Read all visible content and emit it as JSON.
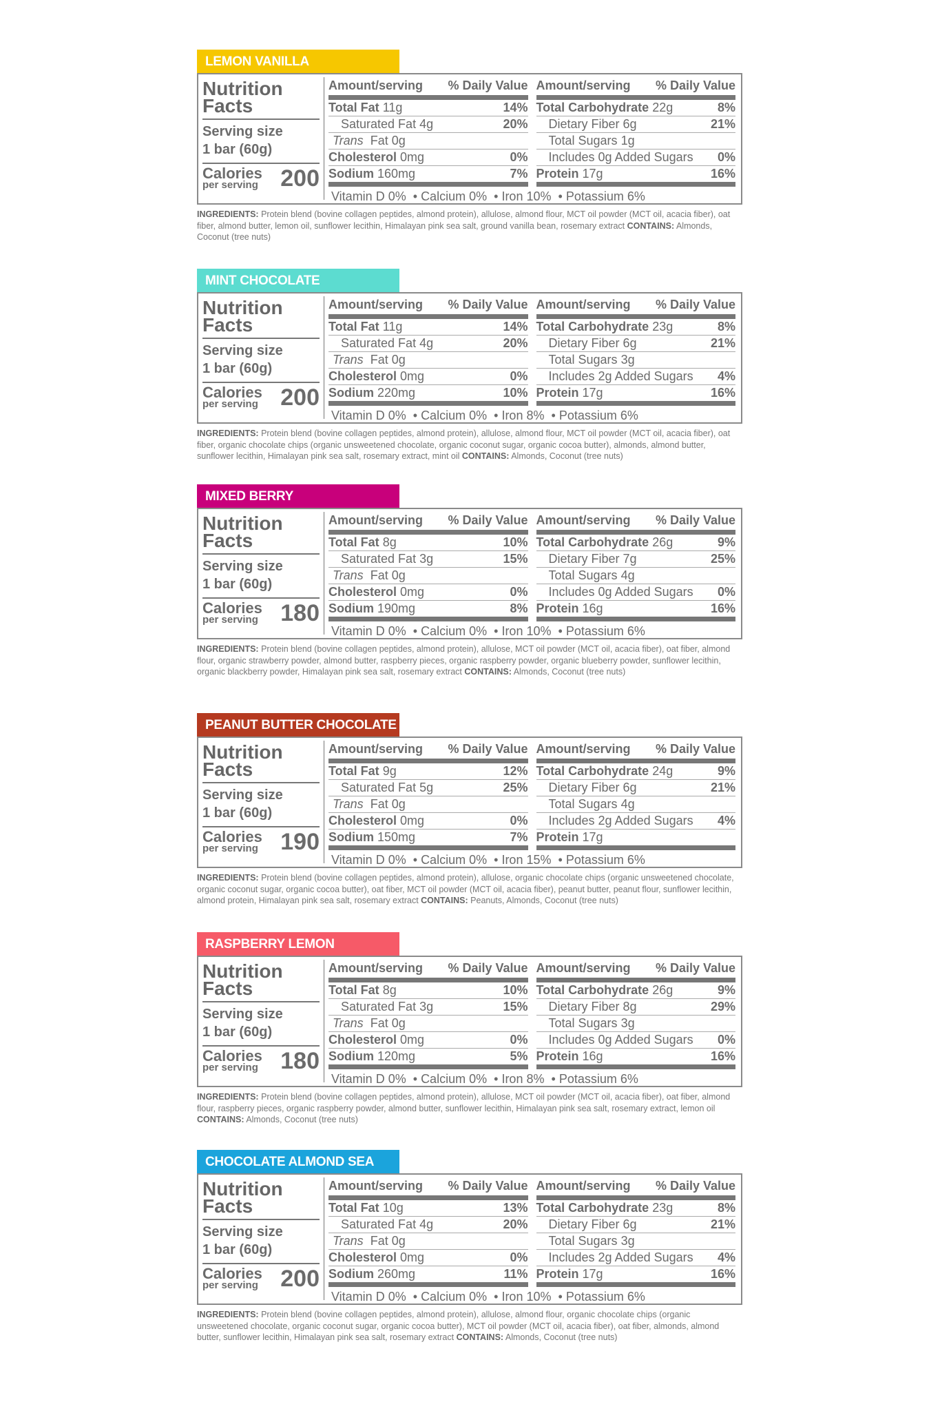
{
  "labels": {
    "nutrition": "Nutrition",
    "facts": "Facts",
    "serving_size": "Serving size",
    "calories": "Calories",
    "per_serving": "per serving",
    "amount_serving": "Amount/serving",
    "daily_value": "% Daily Value",
    "total_fat": "Total Fat",
    "saturated_fat": "Saturated Fat",
    "trans": "Trans",
    "fat": "Fat",
    "cholesterol": "Cholesterol",
    "sodium": "Sodium",
    "total_carbohydrate": "Total Carbohydrate",
    "dietary_fiber": "Dietary Fiber",
    "total_sugars": "Total Sugars",
    "protein": "Protein",
    "ingredients": "INGREDIENTS:",
    "contains": "CONTAINS:",
    "bullet": "•"
  },
  "products": [
    {
      "name": "LEMON VANILLA",
      "color": "#f6c700",
      "serving": "1 bar (60g)",
      "calories": "200",
      "total_fat": "11g",
      "total_fat_dv": "14%",
      "sat_fat": "4g",
      "sat_fat_dv": "20%",
      "trans_fat": "0g",
      "cholesterol": "0mg",
      "cholesterol_dv": "0%",
      "sodium": "160mg",
      "sodium_dv": "7%",
      "carbs": "22g",
      "carbs_dv": "8%",
      "fiber": "6g",
      "fiber_dv": "21%",
      "sugars": "1g",
      "added_sugars": "Includes 0g Added Sugars",
      "added_sugars_dv": "0%",
      "protein": "17g",
      "protein_dv": "16%",
      "vitamins": [
        "Vitamin D 0%",
        "Calcium 0%",
        "Iron 10%",
        "Potassium 6%"
      ],
      "ingredients": "Protein blend (bovine collagen peptides, almond protein), allulose, almond flour, MCT oil powder (MCT oil, acacia fiber), oat fiber, almond butter, lemon oil, sunflower lecithin, Himalayan pink sea salt, ground vanilla bean, rosemary extract",
      "contains": "Almonds, Coconut (tree nuts)"
    },
    {
      "name": "MINT CHOCOLATE",
      "color": "#5cdcd0",
      "serving": "1 bar (60g)",
      "calories": "200",
      "total_fat": "11g",
      "total_fat_dv": "14%",
      "sat_fat": "4g",
      "sat_fat_dv": "20%",
      "trans_fat": "0g",
      "cholesterol": "0mg",
      "cholesterol_dv": "0%",
      "sodium": "220mg",
      "sodium_dv": "10%",
      "carbs": "23g",
      "carbs_dv": "8%",
      "fiber": "6g",
      "fiber_dv": "21%",
      "sugars": "3g",
      "added_sugars": "Includes 2g Added Sugars",
      "added_sugars_dv": "4%",
      "protein": "17g",
      "protein_dv": "16%",
      "vitamins": [
        "Vitamin D 0%",
        "Calcium 0%",
        "Iron 8%",
        "Potassium 6%"
      ],
      "ingredients": "Protein blend (bovine collagen peptides, almond protein), allulose, almond flour, MCT oil powder (MCT oil, acacia fiber), oat fiber, organic chocolate chips (organic unsweetened chocolate, organic coconut sugar, organic cocoa butter), almonds, almond butter, sunflower lecithin, Himalayan pink sea salt, rosemary extract, mint oil",
      "contains": "Almonds, Coconut (tree nuts)"
    },
    {
      "name": "MIXED BERRY",
      "color": "#c8007b",
      "serving": "1 bar (60g)",
      "calories": "180",
      "total_fat": "8g",
      "total_fat_dv": "10%",
      "sat_fat": "3g",
      "sat_fat_dv": "15%",
      "trans_fat": "0g",
      "cholesterol": "0mg",
      "cholesterol_dv": "0%",
      "sodium": "190mg",
      "sodium_dv": "8%",
      "carbs": "26g",
      "carbs_dv": "9%",
      "fiber": "7g",
      "fiber_dv": "25%",
      "sugars": "4g",
      "added_sugars": "Includes 0g Added Sugars",
      "added_sugars_dv": "0%",
      "protein": "16g",
      "protein_dv": "16%",
      "vitamins": [
        "Vitamin D 0%",
        "Calcium 0%",
        "Iron 10%",
        "Potassium 6%"
      ],
      "ingredients": "Protein blend (bovine collagen peptides, almond protein), allulose, MCT oil powder (MCT oil, acacia fiber), oat fiber, almond flour, organic strawberry powder, almond butter, raspberry pieces, organic raspberry powder, organic blueberry powder, sunflower lecithin, organic blackberry powder, Himalayan pink sea salt, rosemary extract",
      "contains": "Almonds, Coconut (tree nuts)"
    },
    {
      "name": "PEANUT BUTTER CHOCOLATE",
      "color": "#b53a20",
      "serving": "1 bar (60g)",
      "calories": "190",
      "total_fat": "9g",
      "total_fat_dv": "12%",
      "sat_fat": "5g",
      "sat_fat_dv": "25%",
      "trans_fat": "0g",
      "cholesterol": "0mg",
      "cholesterol_dv": "0%",
      "sodium": "150mg",
      "sodium_dv": "7%",
      "carbs": "24g",
      "carbs_dv": "9%",
      "fiber": "6g",
      "fiber_dv": "21%",
      "sugars": "4g",
      "added_sugars": "Includes 2g Added Sugars",
      "added_sugars_dv": "4%",
      "protein": "17g",
      "protein_dv": "",
      "vitamins": [
        "Vitamin D 0%",
        "Calcium 0%",
        "Iron 15%",
        "Potassium 6%"
      ],
      "ingredients": "Protein blend (bovine collagen peptides, almond protein), allulose, organic chocolate chips (organic unsweetened chocolate, organic coconut sugar, organic cocoa butter), oat fiber, MCT oil powder (MCT oil, acacia fiber), peanut butter, peanut flour, sunflower lecithin, almond protein, Himalayan pink sea salt, rosemary extract",
      "contains": "Peanuts, Almonds, Coconut (tree nuts)"
    },
    {
      "name": "RASPBERRY LEMON",
      "color": "#f65a68",
      "serving": "1 bar (60g)",
      "calories": "180",
      "total_fat": "8g",
      "total_fat_dv": "10%",
      "sat_fat": "3g",
      "sat_fat_dv": "15%",
      "trans_fat": "0g",
      "cholesterol": "0mg",
      "cholesterol_dv": "0%",
      "sodium": "120mg",
      "sodium_dv": "5%",
      "carbs": "26g",
      "carbs_dv": "9%",
      "fiber": "8g",
      "fiber_dv": "29%",
      "sugars": "3g",
      "added_sugars": "Includes 0g Added Sugars",
      "added_sugars_dv": "0%",
      "protein": "16g",
      "protein_dv": "16%",
      "vitamins": [
        "Vitamin D 0%",
        "Calcium 0%",
        "Iron 8%",
        "Potassium 6%"
      ],
      "ingredients": "Protein blend (bovine collagen peptides, almond protein), allulose, MCT oil powder (MCT oil, acacia fiber), oat fiber, almond flour, raspberry pieces, organic raspberry powder, almond butter, sunflower lecithin, Himalayan pink sea salt, rosemary extract, lemon oil",
      "contains": "Almonds, Coconut (tree nuts)"
    },
    {
      "name": "CHOCOLATE ALMOND SEA SALT",
      "color": "#1ba4dc",
      "serving": "1 bar (60g)",
      "calories": "200",
      "total_fat": "10g",
      "total_fat_dv": "13%",
      "sat_fat": "4g",
      "sat_fat_dv": "20%",
      "trans_fat": "0g",
      "cholesterol": "0mg",
      "cholesterol_dv": "0%",
      "sodium": "260mg",
      "sodium_dv": "11%",
      "carbs": "23g",
      "carbs_dv": "8%",
      "fiber": "6g",
      "fiber_dv": "21%",
      "sugars": "3g",
      "added_sugars": "Includes 2g Added Sugars",
      "added_sugars_dv": "4%",
      "protein": "17g",
      "protein_dv": "16%",
      "vitamins": [
        "Vitamin D 0%",
        "Calcium 0%",
        "Iron 10%",
        "Potassium 6%"
      ],
      "ingredients": "Protein blend (bovine collagen peptides, almond protein), allulose, almond flour, organic chocolate chips (organic unsweetened chocolate, organic coconut sugar, organic cocoa butter), MCT oil powder (MCT oil, acacia fiber), oat fiber, almonds, almond butter, sunflower lecithin, Himalayan pink sea salt, rosemary extract",
      "contains": "Almonds, Coconut (tree nuts)"
    }
  ]
}
